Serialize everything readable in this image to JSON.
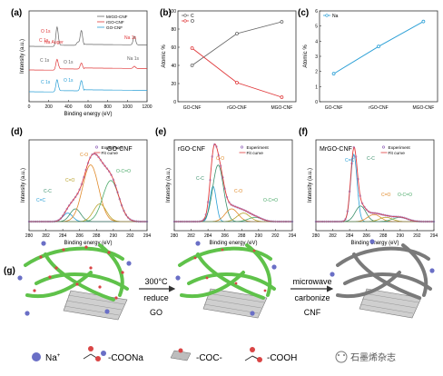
{
  "panel_letters": {
    "a": "(a)",
    "b": "(b)",
    "c": "(c)",
    "d": "(d)",
    "e": "(e)",
    "f": "(f)",
    "g": "(g)"
  },
  "chart_data": [
    {
      "panel": "a",
      "type": "line",
      "xlabel": "Binding energy (eV)",
      "ylabel": "Intensity (a.u.)",
      "x_ticks": [
        "0",
        "200",
        "400",
        "600",
        "800",
        "1000",
        "1200"
      ],
      "xlim": [
        0,
        1200
      ],
      "legend": [
        "MrGO-CNF",
        "rGO-CNF",
        "GO-CNF"
      ],
      "colors": {
        "MrGO-CNF": "#666666",
        "rGO-CNF": "#e0383a",
        "GO-CNF": "#2a9fd6"
      },
      "annotations": [
        {
          "text": "O 1s",
          "color": "#e0383a"
        },
        {
          "text": "C 1s",
          "color": "#e0383a"
        },
        {
          "text": "Na Auger",
          "color": "#e0383a"
        },
        {
          "text": "Na 1s",
          "color": "#e0383a"
        },
        {
          "text": "C 1s",
          "color": "#666666"
        },
        {
          "text": "O 1s",
          "color": "#666666"
        },
        {
          "text": "Na 1s",
          "color": "#666666"
        },
        {
          "text": "C 1s",
          "color": "#2a9fd6"
        },
        {
          "text": "O 1s",
          "color": "#2a9fd6"
        }
      ],
      "series": [
        {
          "name": "MrGO-CNF",
          "peaks": [
            {
              "x": 285,
              "h": 0.72
            },
            {
              "x": 532,
              "h": 0.55
            },
            {
              "x": 496,
              "h": 0.12
            },
            {
              "x": 1071,
              "h": 0.32
            }
          ]
        },
        {
          "name": "rGO-CNF",
          "peaks": [
            {
              "x": 285,
              "h": 0.4
            },
            {
              "x": 532,
              "h": 0.22
            },
            {
              "x": 1071,
              "h": 0.08
            }
          ]
        },
        {
          "name": "GO-CNF",
          "peaks": [
            {
              "x": 285,
              "h": 0.45
            },
            {
              "x": 532,
              "h": 0.38
            }
          ]
        }
      ]
    },
    {
      "panel": "b",
      "type": "line",
      "ylabel": "Atomic %",
      "categories": [
        "GO-CNF",
        "rGO-CNF",
        "MGO-CNF"
      ],
      "ylim": [
        0,
        100
      ],
      "y_ticks": [
        "0",
        "20",
        "40",
        "60",
        "80",
        "100"
      ],
      "legend_position": "top-left",
      "series": [
        {
          "name": "C",
          "color": "#666666",
          "values": [
            40,
            75,
            88
          ]
        },
        {
          "name": "O",
          "color": "#e0383a",
          "values": [
            59,
            21,
            5
          ]
        }
      ]
    },
    {
      "panel": "c",
      "type": "line",
      "ylabel": "Atomic %",
      "categories": [
        "GO-CNF",
        "rGO-CNF",
        "MGO-CNF"
      ],
      "ylim": [
        0,
        6
      ],
      "y_ticks": [
        "0",
        "1",
        "2",
        "3",
        "4",
        "5",
        "6"
      ],
      "legend_position": "top-left",
      "series": [
        {
          "name": "Na",
          "color": "#2a9fd6",
          "values": [
            1.85,
            3.65,
            5.3
          ]
        }
      ]
    },
    {
      "panel": "d",
      "type": "line",
      "title": "GO-CNF",
      "xlabel": "Binding energy (eV)",
      "ylabel": "Intensity (a.u.)",
      "xlim": [
        280,
        294
      ],
      "x_ticks": [
        "280",
        "282",
        "284",
        "286",
        "288",
        "290",
        "292",
        "294"
      ],
      "legend": [
        "Experiment",
        "Fit curve"
      ],
      "components": [
        {
          "label": "C=C",
          "center": 284.6,
          "height": 0.12,
          "width": 0.9,
          "color": "#2a9fd6"
        },
        {
          "label": "C-C",
          "center": 285.5,
          "height": 0.18,
          "width": 1.0,
          "color": "#3a8f6a"
        },
        {
          "label": "C-O",
          "center": 287.3,
          "height": 0.8,
          "width": 1.5,
          "color": "#e08a2a"
        },
        {
          "label": "C=O",
          "center": 288.4,
          "height": 0.25,
          "width": 1.2,
          "color": "#b9a22a"
        },
        {
          "label": "O-C=O",
          "center": 289.7,
          "height": 0.58,
          "width": 1.5,
          "color": "#4caa6a"
        }
      ],
      "annotation_labels": [
        "C=C",
        "C-C",
        "C-O",
        "C=O",
        "O-C=O"
      ]
    },
    {
      "panel": "e",
      "type": "line",
      "title": "rGO-CNF",
      "xlabel": "Binding energy (eV)",
      "ylabel": "Intensity (a.u.)",
      "xlim": [
        280,
        294
      ],
      "x_ticks": [
        "280",
        "282",
        "284",
        "286",
        "288",
        "290",
        "292",
        "294"
      ],
      "legend": [
        "Experiment",
        "Fit curve"
      ],
      "components": [
        {
          "label": "C=C",
          "center": 284.6,
          "height": 0.5,
          "width": 0.6,
          "color": "#2a9fd6"
        },
        {
          "label": "C-C",
          "center": 285.2,
          "height": 0.8,
          "width": 1.0,
          "color": "#3a8f6a"
        },
        {
          "label": "C-O",
          "center": 286.8,
          "height": 0.18,
          "width": 1.2,
          "color": "#e08a2a"
        },
        {
          "label": "C=O",
          "center": 288.2,
          "height": 0.12,
          "width": 1.2,
          "color": "#b9a22a"
        },
        {
          "label": "O-C=O",
          "center": 289.6,
          "height": 0.06,
          "width": 1.3,
          "color": "#4caa6a"
        }
      ],
      "annotation_labels": [
        "C-O",
        "C-C",
        "C-O",
        "O-C=O"
      ]
    },
    {
      "panel": "f",
      "type": "line",
      "title": "MrGO-CNF",
      "xlabel": "Binding energy (eV)",
      "ylabel": "Intensity (a.u.)",
      "xlim": [
        280,
        294
      ],
      "x_ticks": [
        "280",
        "282",
        "284",
        "286",
        "288",
        "290",
        "292",
        "294"
      ],
      "legend": [
        "Experiment",
        "Fit curve"
      ],
      "components": [
        {
          "label": "C=C",
          "center": 284.5,
          "height": 0.95,
          "width": 0.6,
          "color": "#2a9fd6"
        },
        {
          "label": "C-C",
          "center": 285.3,
          "height": 0.22,
          "width": 1.0,
          "color": "#3a8f6a"
        },
        {
          "label": "C-O",
          "center": 286.9,
          "height": 0.1,
          "width": 1.2,
          "color": "#e08a2a"
        },
        {
          "label": "C=O",
          "center": 288.3,
          "height": 0.06,
          "width": 1.2,
          "color": "#b9a22a"
        },
        {
          "label": "O-C=O",
          "center": 290.0,
          "height": 0.06,
          "width": 1.4,
          "color": "#4caa6a"
        }
      ],
      "annotation_labels": [
        "C=C",
        "C-C",
        "C=O",
        "O-C=O"
      ]
    }
  ],
  "schematic": {
    "step1_label": "300°C",
    "step1_sub1": "reduce",
    "step1_sub2": "GO",
    "step2_label": "microwave",
    "step2_sub1": "carbonize",
    "step2_sub2": "CNF",
    "legend": {
      "na": "Na",
      "na_sup": "+",
      "coona": "-COONa",
      "coc": "-COC-",
      "cooh": "-COOH"
    },
    "watermark": "石墨烯杂志"
  }
}
